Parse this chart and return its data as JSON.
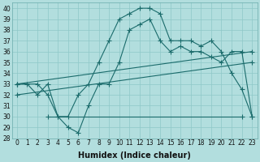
{
  "xlabel": "Humidex (Indice chaleur)",
  "ylabel": "",
  "background_color": "#b2dede",
  "grid_color": "#8ec8c8",
  "line_color": "#1a6b6b",
  "xlim": [
    -0.5,
    23.5
  ],
  "ylim": [
    28,
    40.5
  ],
  "xticks": [
    0,
    1,
    2,
    3,
    4,
    5,
    6,
    7,
    8,
    9,
    10,
    11,
    12,
    13,
    14,
    15,
    16,
    17,
    18,
    19,
    20,
    21,
    22,
    23
  ],
  "yticks": [
    28,
    29,
    30,
    31,
    32,
    33,
    34,
    35,
    36,
    37,
    38,
    39,
    40
  ],
  "series1_x": [
    0,
    1,
    2,
    3,
    4,
    5,
    6,
    7,
    8,
    9,
    10,
    11,
    12,
    13,
    14,
    15,
    16,
    17,
    18,
    19,
    20,
    21,
    22,
    23
  ],
  "series1_y": [
    33,
    33,
    32,
    33,
    30,
    30,
    32,
    33,
    35,
    37,
    39,
    39.5,
    40,
    40,
    39.5,
    37,
    37,
    37,
    36.5,
    37,
    36,
    34,
    32.5,
    30
  ],
  "series2_x": [
    0,
    2,
    3,
    4,
    5,
    6,
    7,
    8,
    9,
    10,
    11,
    12,
    13,
    14,
    15,
    16,
    17,
    18,
    19,
    20,
    21,
    22,
    23
  ],
  "series2_y": [
    33,
    33,
    32,
    30,
    29,
    28.5,
    31,
    33,
    33,
    35,
    38,
    38.5,
    39,
    37,
    36,
    36.5,
    36,
    36,
    35.5,
    35,
    36,
    36,
    30
  ],
  "series3_x": [
    0,
    23
  ],
  "series3_y": [
    33,
    36
  ],
  "series4_x": [
    0,
    23
  ],
  "series4_y": [
    32,
    35
  ],
  "series5_x": [
    3,
    22
  ],
  "series5_y": [
    30,
    30
  ],
  "font_size": 7,
  "tick_font_size": 5.5,
  "xlabel_fontsize": 7
}
